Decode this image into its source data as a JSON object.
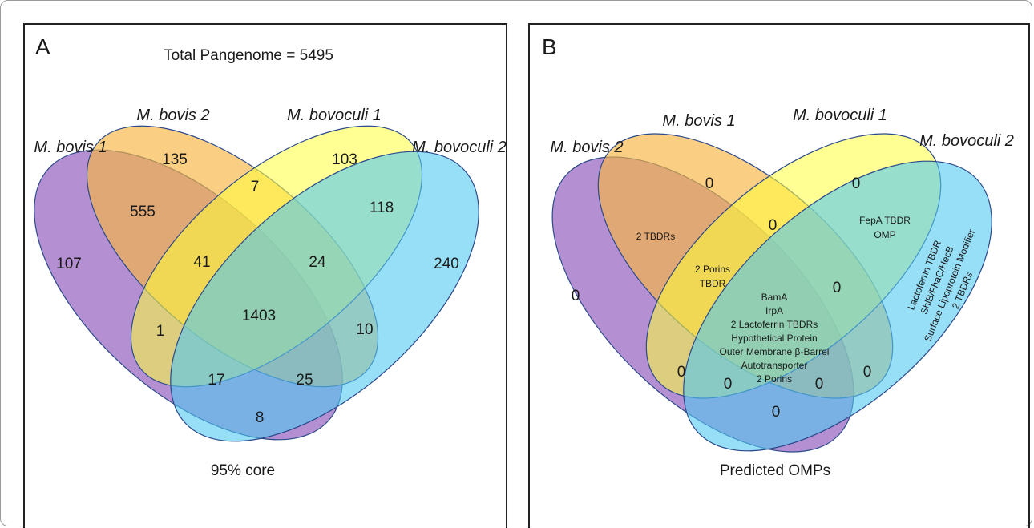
{
  "panel_a": {
    "letter": "A",
    "title": "Total Pangenome = 5495",
    "caption": "95% core",
    "labels": {
      "set1": "M. bovis 1",
      "set2": "M. bovis 2",
      "set3": "M. bovoculi 1",
      "set4": "M. bovoculi 2"
    },
    "values": {
      "only1": "107",
      "only2": "135",
      "only3": "103",
      "only4": "240",
      "s12": "555",
      "s23": "7",
      "s34": "118",
      "s123": "41",
      "s234": "24",
      "all": "1403",
      "s13": "1",
      "s24": "10",
      "s134": "17",
      "s124": "25",
      "s14": "8"
    }
  },
  "panel_b": {
    "letter": "B",
    "caption": "Predicted OMPs",
    "labels": {
      "set1": "M. bovis 2",
      "set2": "M. bovis 1",
      "set3": "M. bovoculi 1",
      "set4": "M. bovoculi 2"
    },
    "values": {
      "only1": "0",
      "only2": "0",
      "only3": "0",
      "s12": "2 TBDRs",
      "s23": "0",
      "s34_line1": "FepA TBDR",
      "s34_line2": "OMP",
      "s123_line1": "2 Porins",
      "s123_line2": "TBDR",
      "s234": "0",
      "all_lines": [
        "BamA",
        "IrpA",
        "2 Lactoferrin TBDRs",
        "Hypothetical Protein",
        "Outer Membrane β-Barrel",
        "Autotransporter",
        "2 Porins"
      ],
      "only4_lines": [
        "Lactoferrin TBDR",
        "ShlB/FhaC/HecB",
        "Surface Lipoprotein Modifier",
        "2 TBDRs"
      ],
      "s13": "0",
      "s134": "0",
      "s124": "0",
      "s24": "0",
      "s14": "0"
    }
  },
  "colors": {
    "set1": "#9b6bc4",
    "set2": "#f7b640",
    "set3": "#ffff3a",
    "set4": "#52c8f2"
  }
}
